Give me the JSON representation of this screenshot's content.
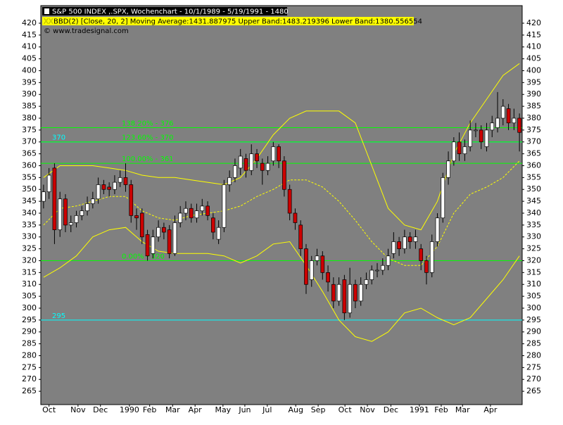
{
  "chart_data": {
    "type": "candlestick",
    "title": "S&P 500 INDEX ,.SPX, Wochenchart - 10/1/1989 - 5/19/1991 - 1480",
    "indicator_icon": "XX",
    "indicator": "BBD(2) [Close, 20, 2] Moving Average:1431.887975 Upper Band:1483.219396 Lower Band:1380.556554",
    "source": "© www.tradesignal.com",
    "up_color": "#ffffff",
    "down_color": "#cc0000",
    "background": "#808080",
    "open": [
      345,
      349,
      359,
      333,
      346,
      335,
      336,
      339,
      341,
      344,
      346,
      352,
      351,
      350,
      353,
      355,
      352,
      339,
      340,
      331,
      323,
      330,
      334,
      333,
      323,
      336,
      340,
      342,
      338,
      341,
      343,
      338,
      329,
      334,
      352,
      355,
      359,
      363,
      358,
      365,
      361,
      358,
      362,
      368,
      362,
      350,
      340,
      335,
      325,
      312,
      320,
      322,
      315,
      310,
      303,
      312,
      298,
      310,
      303,
      310,
      312,
      316,
      316,
      318,
      323,
      328,
      325,
      330,
      328,
      325,
      320,
      315,
      328,
      338,
      355,
      362,
      370,
      365,
      368,
      375,
      375,
      368,
      375,
      376,
      380,
      384,
      378,
      380
    ],
    "high": [
      352,
      359,
      361,
      349,
      348,
      339,
      341,
      343,
      347,
      349,
      355,
      354,
      353,
      356,
      358,
      361,
      354,
      342,
      342,
      333,
      333,
      337,
      336,
      335,
      339,
      343,
      345,
      344,
      344,
      346,
      345,
      340,
      337,
      354,
      358,
      363,
      367,
      365,
      369,
      367,
      363,
      364,
      370,
      369,
      364,
      352,
      342,
      337,
      327,
      322,
      325,
      324,
      318,
      313,
      313,
      314,
      317,
      312,
      313,
      315,
      318,
      319,
      321,
      325,
      332,
      330,
      333,
      332,
      333,
      327,
      322,
      331,
      340,
      357,
      366,
      372,
      374,
      371,
      379,
      378,
      377,
      378,
      381,
      391,
      388,
      386,
      384,
      382
    ],
    "low": [
      342,
      346,
      327,
      330,
      332,
      332,
      334,
      337,
      339,
      342,
      344,
      348,
      347,
      348,
      351,
      349,
      336,
      333,
      327,
      320,
      321,
      328,
      329,
      321,
      322,
      334,
      337,
      336,
      336,
      339,
      337,
      329,
      327,
      332,
      349,
      353,
      356,
      355,
      356,
      359,
      352,
      356,
      360,
      359,
      347,
      337,
      333,
      322,
      306,
      309,
      318,
      312,
      307,
      300,
      301,
      295,
      296,
      300,
      301,
      308,
      310,
      313,
      314,
      316,
      321,
      322,
      323,
      325,
      325,
      316,
      310,
      313,
      326,
      336,
      352,
      360,
      362,
      362,
      366,
      372,
      367,
      366,
      372,
      374,
      377,
      375,
      375,
      366
    ],
    "close": [
      349,
      356,
      333,
      346,
      335,
      336,
      339,
      341,
      344,
      346,
      352,
      350,
      350,
      353,
      355,
      352,
      339,
      338,
      330,
      322,
      330,
      334,
      332,
      323,
      336,
      340,
      342,
      338,
      341,
      343,
      339,
      332,
      334,
      352,
      355,
      360,
      364,
      358,
      365,
      362,
      358,
      361,
      368,
      362,
      350,
      340,
      336,
      325,
      310,
      320,
      322,
      315,
      311,
      303,
      310,
      298,
      310,
      303,
      310,
      312,
      316,
      316,
      318,
      322,
      328,
      325,
      330,
      328,
      330,
      320,
      315,
      328,
      338,
      355,
      362,
      370,
      365,
      368,
      375,
      375,
      370,
      375,
      378,
      380,
      385,
      378,
      380,
      374
    ],
    "bands": [
      {
        "color": "#ffff00",
        "dashed": false,
        "x": [
          0,
          3,
          6,
          9,
          12,
          15,
          18,
          21,
          24,
          27,
          30,
          33,
          36,
          39,
          42,
          45,
          48,
          51,
          54,
          57,
          60,
          63,
          66,
          69,
          72,
          75,
          78,
          81,
          84,
          87
        ],
        "values": [
          355,
          360,
          360,
          360,
          359,
          358,
          356,
          355,
          355,
          354,
          353,
          352,
          355,
          363,
          373,
          380,
          383,
          383,
          383,
          378,
          360,
          342,
          335,
          333,
          345,
          365,
          378,
          388,
          398,
          403
        ]
      },
      {
        "color": "#ffff00",
        "dashed": true,
        "x": [
          0,
          3,
          6,
          9,
          12,
          15,
          18,
          21,
          24,
          27,
          30,
          33,
          36,
          39,
          42,
          45,
          48,
          51,
          54,
          57,
          60,
          63,
          66,
          69,
          72,
          75,
          78,
          81,
          84,
          87
        ],
        "values": [
          335,
          342,
          343,
          345,
          347,
          347,
          341,
          338,
          337,
          339,
          340,
          341,
          343,
          347,
          350,
          354,
          354,
          351,
          345,
          337,
          328,
          321,
          318,
          318,
          326,
          340,
          348,
          351,
          355,
          362
        ]
      },
      {
        "color": "#ffff00",
        "dashed": false,
        "x": [
          0,
          3,
          6,
          9,
          12,
          15,
          18,
          21,
          24,
          27,
          30,
          33,
          36,
          39,
          42,
          45,
          48,
          51,
          54,
          57,
          60,
          63,
          66,
          69,
          72,
          75,
          78,
          81,
          84,
          87
        ],
        "values": [
          313,
          317,
          322,
          330,
          333,
          334,
          328,
          324,
          323,
          323,
          323,
          322,
          319,
          322,
          327,
          328,
          318,
          307,
          295,
          288,
          286,
          290,
          298,
          300,
          296,
          293,
          296,
          304,
          312,
          322
        ]
      }
    ],
    "levels": [
      {
        "value": 370,
        "label": "370",
        "color": "#00ffff"
      },
      {
        "value": 295,
        "label": "295",
        "color": "#00ffff"
      },
      {
        "value": 376,
        "label": "138.20% - 376",
        "color": "#00ff00"
      },
      {
        "value": 370,
        "label": "123.60% - 370",
        "color": "#00ff00"
      },
      {
        "value": 361,
        "label": "100.00% - 361",
        "color": "#00ff00"
      },
      {
        "value": 320,
        "label": "0.00% - 320",
        "color": "#00ff00"
      }
    ],
    "xlim": [
      -0.5,
      87.5
    ],
    "xticks": [
      {
        "value": 1,
        "label": "Oct"
      },
      {
        "value": 6.3,
        "label": "Nov"
      },
      {
        "value": 10.4,
        "label": "Dec"
      },
      {
        "value": 15.7,
        "label": "1990"
      },
      {
        "value": 19.4,
        "label": "Feb"
      },
      {
        "value": 23.6,
        "label": "Mar"
      },
      {
        "value": 27.7,
        "label": "Apr"
      },
      {
        "value": 32.8,
        "label": "May"
      },
      {
        "value": 36.8,
        "label": "Jun"
      },
      {
        "value": 40.9,
        "label": "Jul"
      },
      {
        "value": 46.1,
        "label": "Aug"
      },
      {
        "value": 50.2,
        "label": "Sep"
      },
      {
        "value": 55.1,
        "label": "Oct"
      },
      {
        "value": 59.2,
        "label": "Nov"
      },
      {
        "value": 63.5,
        "label": "Dec"
      },
      {
        "value": 68.7,
        "label": "1991"
      },
      {
        "value": 72.7,
        "label": "Feb"
      },
      {
        "value": 76.6,
        "label": "Mar"
      },
      {
        "value": 81.7,
        "label": "Apr"
      }
    ],
    "ylim": [
      259.4,
      427.4
    ],
    "yticks": [
      265,
      270,
      275,
      280,
      285,
      290,
      295,
      300,
      305,
      310,
      315,
      320,
      325,
      330,
      335,
      340,
      345,
      350,
      355,
      360,
      365,
      370,
      375,
      380,
      385,
      390,
      395,
      400,
      405,
      410,
      415,
      420
    ]
  }
}
